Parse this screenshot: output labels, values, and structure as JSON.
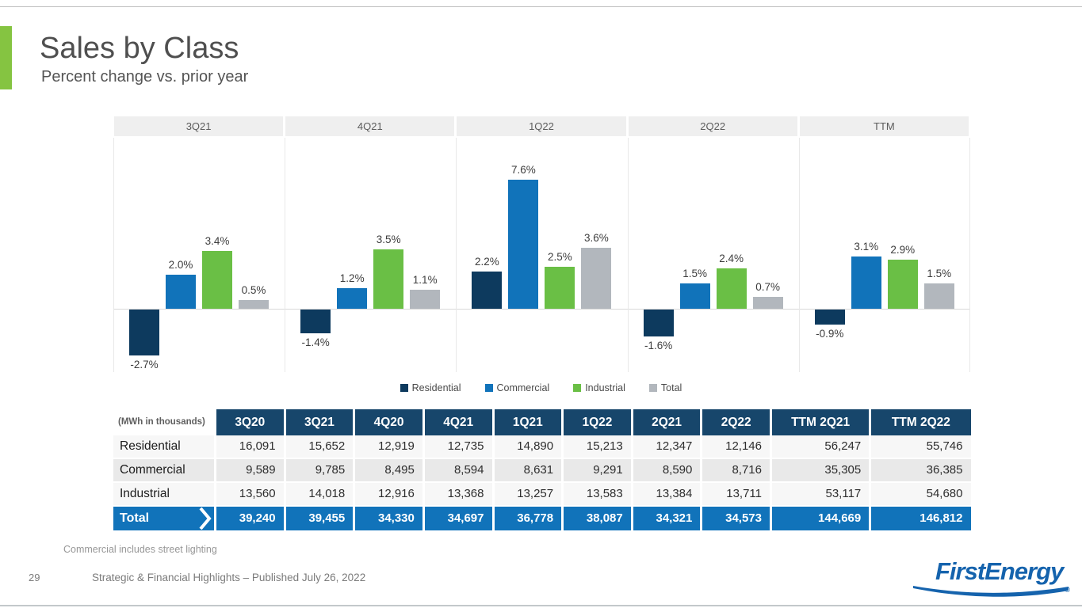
{
  "slide": {
    "title": "Sales by Class",
    "subtitle": "Percent change vs. prior year",
    "footnote": "Commercial includes street lighting",
    "page_number": "29",
    "footer_text": "Strategic & Financial Highlights – Published July 26, 2022",
    "logo": {
      "text": "FirstEnergy",
      "registered_mark": "®"
    }
  },
  "colors": {
    "accent_green": "#85c441",
    "residential": "#0d3a5e",
    "commercial": "#1173ba",
    "industrial": "#6abf45",
    "total": "#b2b7bd",
    "table_header_navy": "#17466b",
    "total_row_blue": "#1173ba",
    "panel_header_bg": "#efefef"
  },
  "chart_data": {
    "type": "bar",
    "title": "Sales by Class — Percent change vs. prior year",
    "categories": [
      "3Q21",
      "4Q21",
      "1Q22",
      "2Q22",
      "TTM"
    ],
    "unit": "%",
    "series": [
      {
        "name": "Residential",
        "color": "#0d3a5e",
        "values": [
          -2.7,
          -1.4,
          2.2,
          -1.6,
          -0.9
        ]
      },
      {
        "name": "Commercial",
        "color": "#1173ba",
        "values": [
          2.0,
          1.2,
          7.6,
          1.5,
          3.1
        ]
      },
      {
        "name": "Industrial",
        "color": "#6abf45",
        "values": [
          3.4,
          3.5,
          2.5,
          2.4,
          2.9
        ]
      },
      {
        "name": "Total",
        "color": "#b2b7bd",
        "values": [
          0.5,
          1.1,
          3.6,
          0.7,
          1.5
        ]
      }
    ],
    "legend_position": "bottom",
    "ylim": [
      -4,
      9
    ],
    "grid": false,
    "data_labels": true
  },
  "table": {
    "unit_label": "(MWh in thousands)",
    "columns": [
      "3Q20",
      "3Q21",
      "4Q20",
      "4Q21",
      "1Q21",
      "1Q22",
      "2Q21",
      "2Q22",
      "TTM 2Q21",
      "TTM 2Q22"
    ],
    "rows": [
      {
        "label": "Residential",
        "values": [
          "16,091",
          "15,652",
          "12,919",
          "12,735",
          "14,890",
          "15,213",
          "12,347",
          "12,146",
          "56,247",
          "55,746"
        ]
      },
      {
        "label": "Commercial",
        "values": [
          "9,589",
          "9,785",
          "8,495",
          "8,594",
          "8,631",
          "9,291",
          "8,590",
          "8,716",
          "35,305",
          "36,385"
        ]
      },
      {
        "label": "Industrial",
        "values": [
          "13,560",
          "14,018",
          "12,916",
          "13,368",
          "13,257",
          "13,583",
          "13,384",
          "13,711",
          "53,117",
          "54,680"
        ]
      }
    ],
    "total_row": {
      "label": "Total",
      "values": [
        "39,240",
        "39,455",
        "34,330",
        "34,697",
        "36,778",
        "38,087",
        "34,321",
        "34,573",
        "144,669",
        "146,812"
      ]
    }
  }
}
